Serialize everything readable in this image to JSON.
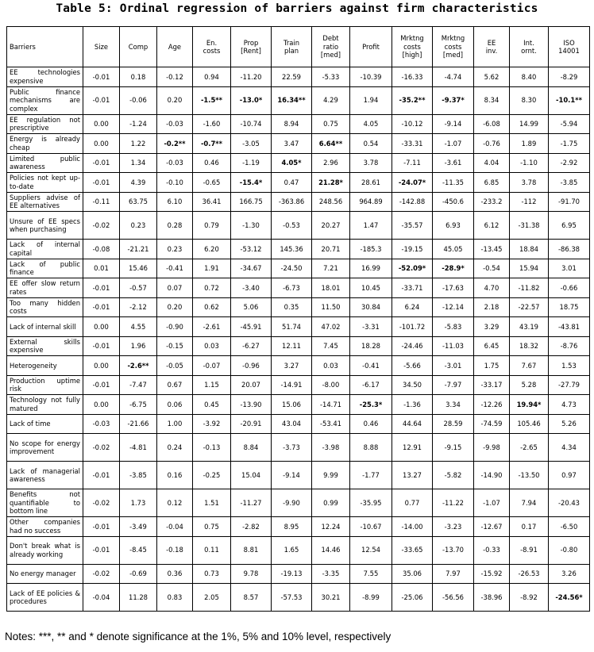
{
  "title": "Table 5: Ordinal regression of barriers against firm characteristics",
  "columns": [
    "Barriers",
    "Size",
    "Comp",
    "Age",
    "En.\ncosts",
    "Prop\n[Rent]",
    "Train\nplan",
    "Debt\nratio\n[med]",
    "Profit",
    "Mrktng\ncosts\n[high]",
    "Mrktng\ncosts\n[med]",
    "EE\ninv.",
    "Int.\nornt.",
    "ISO\n14001"
  ],
  "rows": [
    {
      "label": "EE technologies expensive",
      "lines": 2,
      "values": [
        "-0.01",
        "0.18",
        "-0.12",
        "0.94",
        "-11.20",
        "22.59",
        "-5.33",
        "-10.39",
        "-16.33",
        "-4.74",
        "5.62",
        "8.40",
        "-8.29"
      ]
    },
    {
      "label": "Public finance mechanisms are complex",
      "lines": 3,
      "values": [
        "-0.01",
        "-0.06",
        "0.20",
        "-1.5**",
        "-13.0*",
        "16.34**",
        "4.29",
        "1.94",
        "-35.2**",
        "-9.37*",
        "8.34",
        "8.30",
        "-10.1**"
      ]
    },
    {
      "label": "EE regulation not prescriptive",
      "lines": 2,
      "values": [
        "0.00",
        "-1.24",
        "-0.03",
        "-1.60",
        "-10.74",
        "8.94",
        "0.75",
        "4.05",
        "-10.12",
        "-9.14",
        "-6.08",
        "14.99",
        "-5.94"
      ]
    },
    {
      "label": "Energy is already cheap",
      "lines": 2,
      "values": [
        "0.00",
        "1.22",
        "-0.2**",
        "-0.7**",
        "-3.05",
        "3.47",
        "6.64**",
        "0.54",
        "-33.31",
        "-1.07",
        "-0.76",
        "1.89",
        "-1.75"
      ]
    },
    {
      "label": "Limited public awareness",
      "lines": 2,
      "values": [
        "-0.01",
        "1.34",
        "-0.03",
        "0.46",
        "-1.19",
        "4.05*",
        "2.96",
        "3.78",
        "-7.11",
        "-3.61",
        "4.04",
        "-1.10",
        "-2.92"
      ]
    },
    {
      "label": "Policies not kept up-to-date",
      "lines": 2,
      "values": [
        "-0.01",
        "4.39",
        "-0.10",
        "-0.65",
        "-15.4*",
        "0.47",
        "21.28*",
        "28.61",
        "-24.07*",
        "-11.35",
        "6.85",
        "3.78",
        "-3.85"
      ]
    },
    {
      "label": "Suppliers advise of EE alternatives",
      "lines": 2,
      "values": [
        "-0.11",
        "63.75",
        "6.10",
        "36.41",
        "166.75",
        "-363.86",
        "248.56",
        "964.89",
        "-142.88",
        "-450.6",
        "-233.2",
        "-112",
        "-91.70"
      ]
    },
    {
      "label": "Unsure of EE specs when purchasing",
      "lines": 3,
      "values": [
        "-0.02",
        "0.23",
        "0.28",
        "0.79",
        "-1.30",
        "-0.53",
        "20.27",
        "1.47",
        "-35.57",
        "6.93",
        "6.12",
        "-31.38",
        "6.95"
      ]
    },
    {
      "label": "Lack of internal capital",
      "lines": 2,
      "values": [
        "-0.08",
        "-21.21",
        "0.23",
        "6.20",
        "-53.12",
        "145.36",
        "20.71",
        "-185.3",
        "-19.15",
        "45.05",
        "-13.45",
        "18.84",
        "-86.38"
      ]
    },
    {
      "label": "Lack of public finance",
      "lines": 2,
      "values": [
        "0.01",
        "15.46",
        "-0.41",
        "1.91",
        "-34.67",
        "-24.50",
        "7.21",
        "16.99",
        "-52.09*",
        "-28.9*",
        "-0.54",
        "15.94",
        "3.01"
      ]
    },
    {
      "label": "EE offer slow return rates",
      "lines": 2,
      "values": [
        "-0.01",
        "-0.57",
        "0.07",
        "0.72",
        "-3.40",
        "-6.73",
        "18.01",
        "10.45",
        "-33.71",
        "-17.63",
        "4.70",
        "-11.82",
        "-0.66"
      ]
    },
    {
      "label": "Too many hidden costs",
      "lines": 2,
      "values": [
        "-0.01",
        "-2.12",
        "0.20",
        "0.62",
        "5.06",
        "0.35",
        "11.50",
        "30.84",
        "6.24",
        "-12.14",
        "2.18",
        "-22.57",
        "18.75"
      ]
    },
    {
      "label": "Lack of internal skill",
      "lines": 2,
      "values": [
        "0.00",
        "4.55",
        "-0.90",
        "-2.61",
        "-45.91",
        "51.74",
        "47.02",
        "-3.31",
        "-101.72",
        "-5.83",
        "3.29",
        "43.19",
        "-43.81"
      ]
    },
    {
      "label": "External skills expensive",
      "lines": 2,
      "values": [
        "-0.01",
        "1.96",
        "-0.15",
        "0.03",
        "-6.27",
        "12.11",
        "7.45",
        "18.28",
        "-24.46",
        "-11.03",
        "6.45",
        "18.32",
        "-8.76"
      ]
    },
    {
      "label": "Heterogeneity",
      "lines": 2,
      "values": [
        "0.00",
        "-2.6**",
        "-0.05",
        "-0.07",
        "-0.96",
        "3.27",
        "0.03",
        "-0.41",
        "-5.66",
        "-3.01",
        "1.75",
        "7.67",
        "1.53"
      ]
    },
    {
      "label": "Production uptime risk",
      "lines": 2,
      "values": [
        "-0.01",
        "-7.47",
        "0.67",
        "1.15",
        "20.07",
        "-14.91",
        "-8.00",
        "-6.17",
        "34.50",
        "-7.97",
        "-33.17",
        "5.28",
        "-27.79"
      ]
    },
    {
      "label": "Technology not fully matured",
      "lines": 2,
      "values": [
        "0.00",
        "-6.75",
        "0.06",
        "0.45",
        "-13.90",
        "15.06",
        "-14.71",
        "-25.3*",
        "-1.36",
        "3.34",
        "-12.26",
        "19.94*",
        "4.73"
      ]
    },
    {
      "label": "Lack of time",
      "lines": 2,
      "values": [
        "-0.03",
        "-21.66",
        "1.00",
        "-3.92",
        "-20.91",
        "43.04",
        "-53.41",
        "0.46",
        "44.64",
        "28.59",
        "-74.59",
        "105.46",
        "5.26"
      ]
    },
    {
      "label": "No scope for energy improvement",
      "lines": 3,
      "values": [
        "-0.02",
        "-4.81",
        "0.24",
        "-0.13",
        "8.84",
        "-3.73",
        "-3.98",
        "8.88",
        "12.91",
        "-9.15",
        "-9.98",
        "-2.65",
        "4.34"
      ]
    },
    {
      "label": "Lack of managerial awareness",
      "lines": 3,
      "values": [
        "-0.01",
        "-3.85",
        "0.16",
        "-0.25",
        "15.04",
        "-9.14",
        "9.99",
        "-1.77",
        "13.27",
        "-5.82",
        "-14.90",
        "-13.50",
        "0.97"
      ]
    },
    {
      "label": "Benefits not quantifiable to bottom line",
      "lines": 3,
      "values": [
        "-0.02",
        "1.73",
        "0.12",
        "1.51",
        "-11.27",
        "-9.90",
        "0.99",
        "-35.95",
        "0.77",
        "-11.22",
        "-1.07",
        "7.94",
        "-20.43"
      ]
    },
    {
      "label": "Other companies had no success",
      "lines": 2,
      "values": [
        "-0.01",
        "-3.49",
        "-0.04",
        "0.75",
        "-2.82",
        "8.95",
        "12.24",
        "-10.67",
        "-14.00",
        "-3.23",
        "-12.67",
        "0.17",
        "-6.50"
      ]
    },
    {
      "label": "Don't break what is already working",
      "lines": 3,
      "values": [
        "-0.01",
        "-8.45",
        "-0.18",
        "0.11",
        "8.81",
        "1.65",
        "14.46",
        "12.54",
        "-33.65",
        "-13.70",
        "-0.33",
        "-8.91",
        "-0.80"
      ]
    },
    {
      "label": "No energy manager",
      "lines": 2,
      "values": [
        "-0.02",
        "-0.69",
        "0.36",
        "0.73",
        "9.78",
        "-19.13",
        "-3.35",
        "7.55",
        "35.06",
        "7.97",
        "-15.92",
        "-26.53",
        "3.26"
      ]
    },
    {
      "label": "Lack of EE policies & procedures",
      "lines": 3,
      "values": [
        "-0.04",
        "11.28",
        "0.83",
        "2.05",
        "8.57",
        "-57.53",
        "30.21",
        "-8.99",
        "-25.06",
        "-56.56",
        "-38.96",
        "-8.92",
        "-24.56*"
      ]
    }
  ],
  "notes": "Notes:  ***, ** and * denote significance at the 1%, 5% and 10% level, respectively"
}
